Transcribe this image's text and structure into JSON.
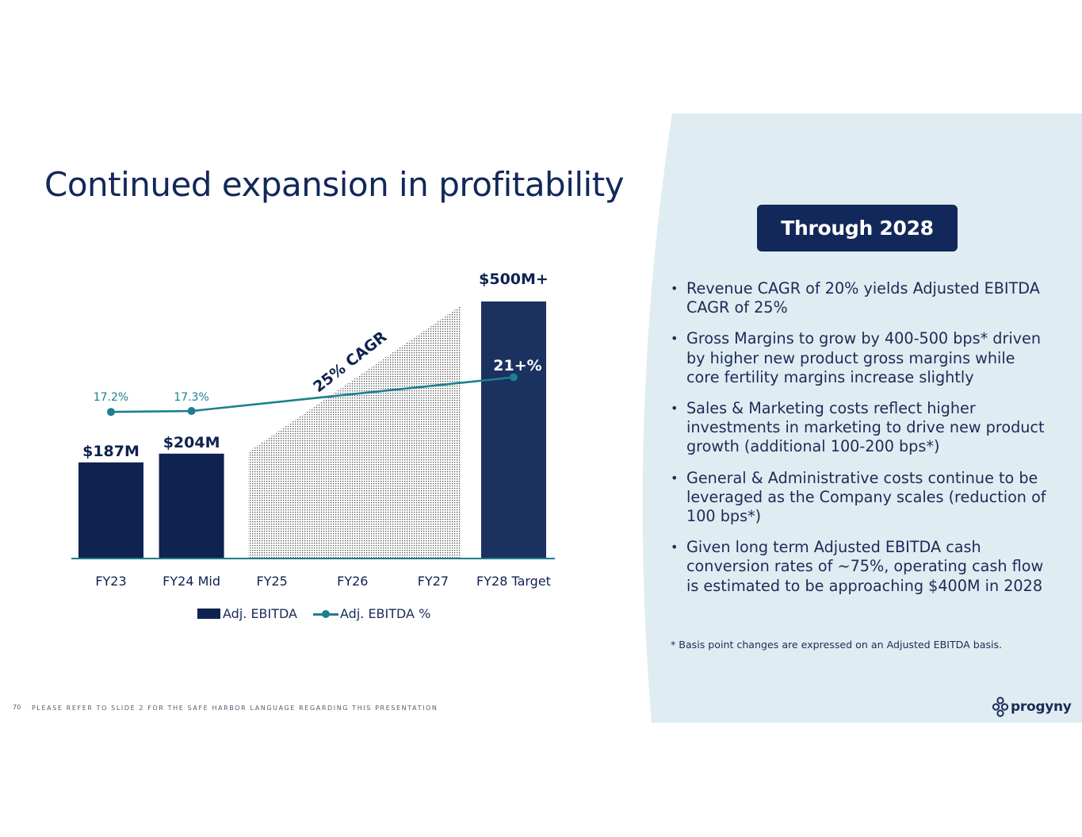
{
  "slide": {
    "title": "Continued expansion in profitability",
    "page_number": "70",
    "disclaimer": "PLEASE REFER TO SLIDE 2 FOR THE SAFE HARBOR LANGUAGE REGARDING THIS PRESENTATION",
    "brand": "progyny"
  },
  "panel": {
    "header": "Through 2028",
    "bullets": [
      "Revenue CAGR of 20% yields Adjusted EBITDA CAGR of 25%",
      "Gross Margins to grow by 400-500 bps* driven by higher new product gross margins while core fertility margins increase slightly",
      "Sales & Marketing costs reflect higher investments in marketing to drive new product growth (additional 100-200 bps*)",
      "General & Administrative costs continue to be leveraged as the Company scales (reduction of 100 bps*)",
      "Given long term Adjusted EBITDA cash conversion rates of ~75%, operating cash flow is estimated to be approaching $400M in 2028"
    ],
    "footnote": "* Basis point changes are expressed on an Adjusted EBITDA basis."
  },
  "colors": {
    "navy": "#0f2250",
    "navy_bar_target": "#1b3160",
    "teal": "#1c7f8d",
    "panel_bg": "#dfedf3",
    "title": "#12285a"
  },
  "chart_data": {
    "type": "bar",
    "categories": [
      "FY23",
      "FY24 Mid",
      "FY25",
      "FY26",
      "FY27",
      "FY28 Target"
    ],
    "series": [
      {
        "name": "Adj. EBITDA",
        "type": "bar",
        "values": [
          187,
          204,
          null,
          null,
          null,
          500
        ],
        "labels": [
          "$187M",
          "$204M",
          "",
          "",
          "",
          "$500M+"
        ]
      },
      {
        "name": "Adj. EBITDA %",
        "type": "line",
        "values": [
          17.2,
          17.3,
          null,
          null,
          null,
          21
        ],
        "labels": [
          "17.2%",
          "17.3%",
          "",
          "",
          "",
          "21+%"
        ]
      }
    ],
    "projection": {
      "from": "FY25",
      "to": "FY27",
      "annotation": "25% CAGR"
    },
    "ylim_bars": [
      0,
      560
    ],
    "ylim_line": [
      0,
      30
    ],
    "legend": [
      "Adj. EBITDA",
      "Adj. EBITDA %"
    ],
    "legend_position": "bottom",
    "xlabel": "",
    "ylabel": "",
    "grid": false
  }
}
